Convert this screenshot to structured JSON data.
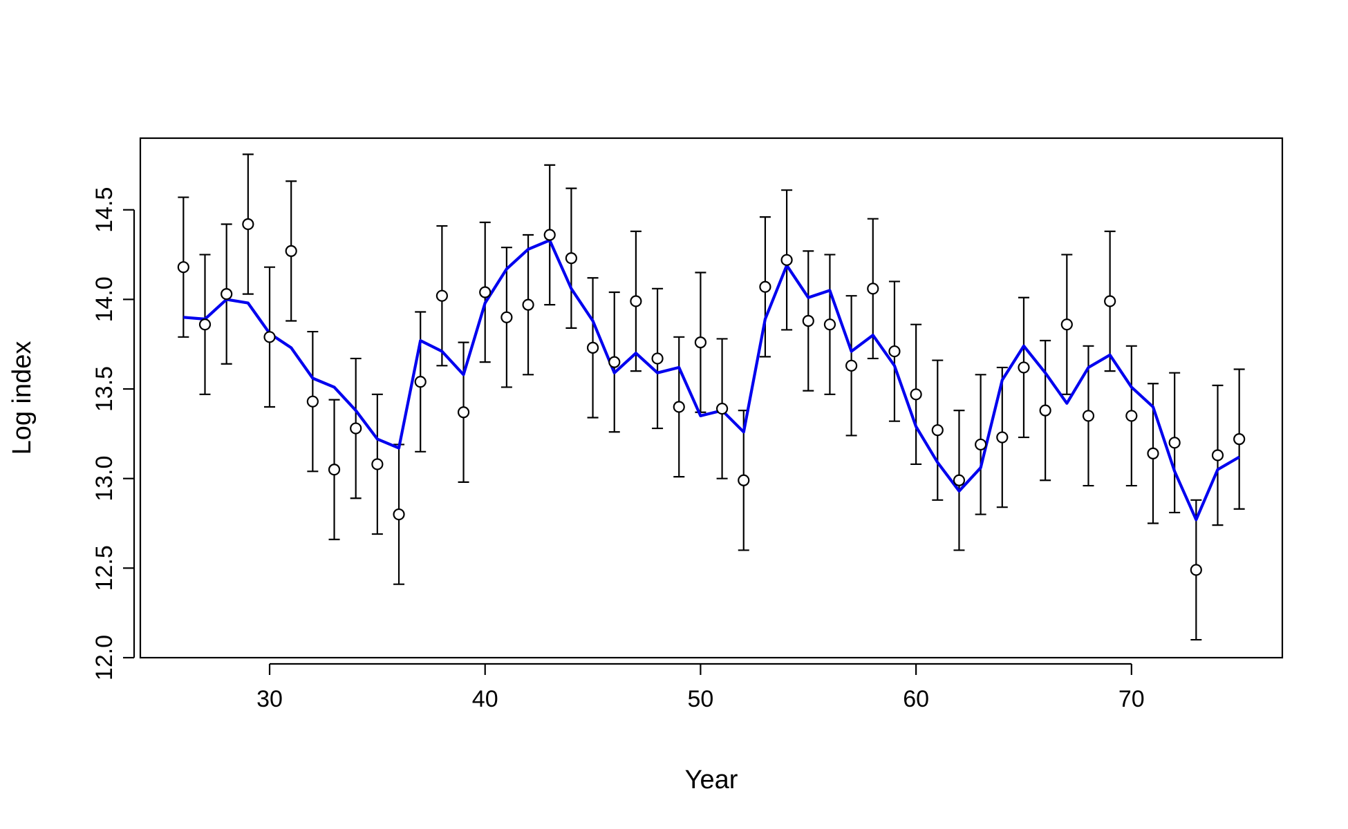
{
  "chart_data": {
    "type": "scatter",
    "title": "",
    "xlabel": "Year",
    "ylabel": "Log index",
    "xlim": [
      24,
      77
    ],
    "ylim": [
      12.0,
      14.9
    ],
    "x_ticks": [
      30,
      40,
      50,
      60,
      70
    ],
    "y_ticks": [
      12.0,
      12.5,
      13.0,
      13.5,
      14.0,
      14.5
    ],
    "x_tick_labels": [
      "30",
      "40",
      "50",
      "60",
      "70"
    ],
    "y_tick_labels": [
      "12.0",
      "12.5",
      "13.0",
      "13.5",
      "14.0",
      "14.5"
    ],
    "grid": false,
    "legend": "none",
    "x": [
      26,
      27,
      28,
      29,
      30,
      31,
      32,
      33,
      34,
      35,
      36,
      37,
      38,
      39,
      40,
      41,
      42,
      43,
      44,
      45,
      46,
      47,
      48,
      49,
      50,
      51,
      52,
      53,
      54,
      55,
      56,
      57,
      58,
      59,
      60,
      61,
      62,
      63,
      64,
      65,
      66,
      67,
      68,
      69,
      70,
      71,
      72,
      73,
      74,
      75
    ],
    "series": [
      {
        "kind": "points-with-errorbars",
        "marker": "open-circle",
        "color": "#000000",
        "y": [
          14.18,
          13.86,
          14.03,
          14.42,
          13.79,
          14.27,
          13.43,
          13.05,
          13.28,
          13.08,
          12.8,
          13.54,
          14.02,
          13.37,
          14.04,
          13.9,
          13.97,
          14.36,
          14.23,
          13.73,
          13.65,
          13.99,
          13.67,
          13.4,
          13.76,
          13.39,
          12.99,
          14.07,
          14.22,
          13.88,
          13.86,
          13.63,
          14.06,
          13.71,
          13.47,
          13.27,
          12.99,
          13.19,
          13.23,
          13.62,
          13.38,
          13.86,
          13.35,
          13.99,
          13.35,
          13.14,
          13.2,
          12.49,
          13.13,
          13.22
        ],
        "lower": [
          13.79,
          13.47,
          13.64,
          14.03,
          13.4,
          13.88,
          13.04,
          12.66,
          12.89,
          12.69,
          12.41,
          13.15,
          13.63,
          12.98,
          13.65,
          13.51,
          13.58,
          13.97,
          13.84,
          13.34,
          13.26,
          13.6,
          13.28,
          13.01,
          13.37,
          13.0,
          12.6,
          13.68,
          13.83,
          13.49,
          13.47,
          13.24,
          13.67,
          13.32,
          13.08,
          12.88,
          12.6,
          12.8,
          12.84,
          13.23,
          12.99,
          13.47,
          12.96,
          13.6,
          12.96,
          12.75,
          12.81,
          12.1,
          12.74,
          12.83
        ],
        "upper": [
          14.57,
          14.25,
          14.42,
          14.81,
          14.18,
          14.66,
          13.82,
          13.44,
          13.67,
          13.47,
          13.19,
          13.93,
          14.41,
          13.76,
          14.43,
          14.29,
          14.36,
          14.75,
          14.62,
          14.12,
          14.04,
          14.38,
          14.06,
          13.79,
          14.15,
          13.78,
          13.38,
          14.46,
          14.61,
          14.27,
          14.25,
          14.02,
          14.45,
          14.1,
          13.86,
          13.66,
          13.38,
          13.58,
          13.62,
          14.01,
          13.77,
          14.25,
          13.74,
          14.38,
          13.74,
          13.53,
          13.59,
          12.88,
          13.52,
          13.61
        ]
      },
      {
        "kind": "line",
        "color": "#0000ee",
        "y": [
          13.9,
          13.89,
          14.0,
          13.98,
          13.81,
          13.73,
          13.56,
          13.51,
          13.38,
          13.22,
          13.17,
          13.77,
          13.71,
          13.58,
          13.98,
          14.17,
          14.28,
          14.33,
          14.06,
          13.88,
          13.59,
          13.7,
          13.59,
          13.62,
          13.35,
          13.38,
          13.26,
          13.89,
          14.19,
          14.01,
          14.05,
          13.71,
          13.8,
          13.63,
          13.29,
          13.09,
          12.93,
          13.06,
          13.55,
          13.74,
          13.59,
          13.42,
          13.62,
          13.69,
          13.51,
          13.4,
          13.04,
          12.77,
          13.05,
          13.12
        ]
      }
    ]
  }
}
